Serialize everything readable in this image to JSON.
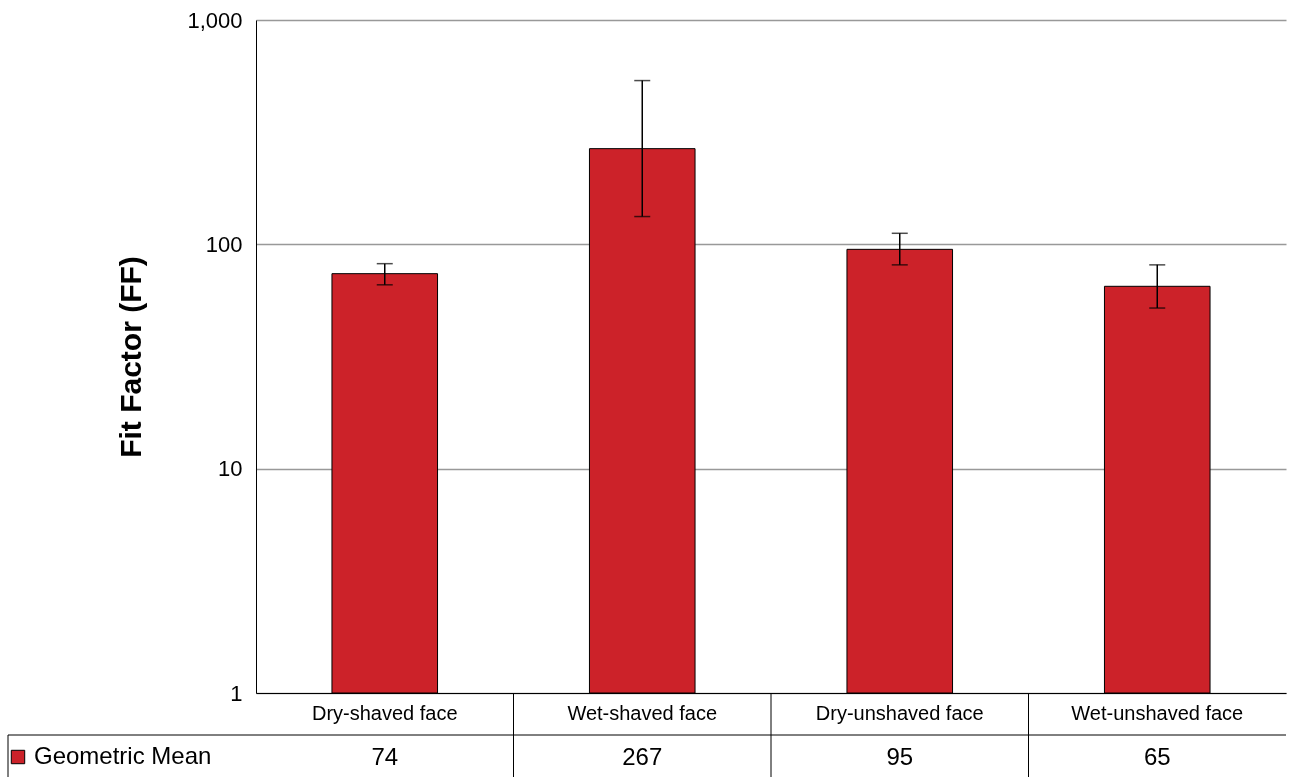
{
  "chart_data": {
    "type": "bar",
    "ylabel": "Fit Factor (FF)",
    "categories": [
      "Dry-shaved face",
      "Wet-shaved face",
      "Dry-unshaved face",
      "Wet-unshaved face"
    ],
    "series": [
      {
        "name": "Geometric Mean",
        "color": "#cc2229",
        "values": [
          74,
          267,
          95,
          65
        ],
        "errors": [
          [
            66,
            82
          ],
          [
            133,
            537
          ],
          [
            81,
            112
          ],
          [
            52,
            81
          ]
        ]
      }
    ],
    "ylim": [
      1,
      1000
    ],
    "yticks": [
      1,
      10,
      100,
      {
        "value": 1000,
        "label": "1,000"
      }
    ],
    "log": true,
    "grid": "y",
    "legend": "bottom left",
    "data_labels": true
  }
}
